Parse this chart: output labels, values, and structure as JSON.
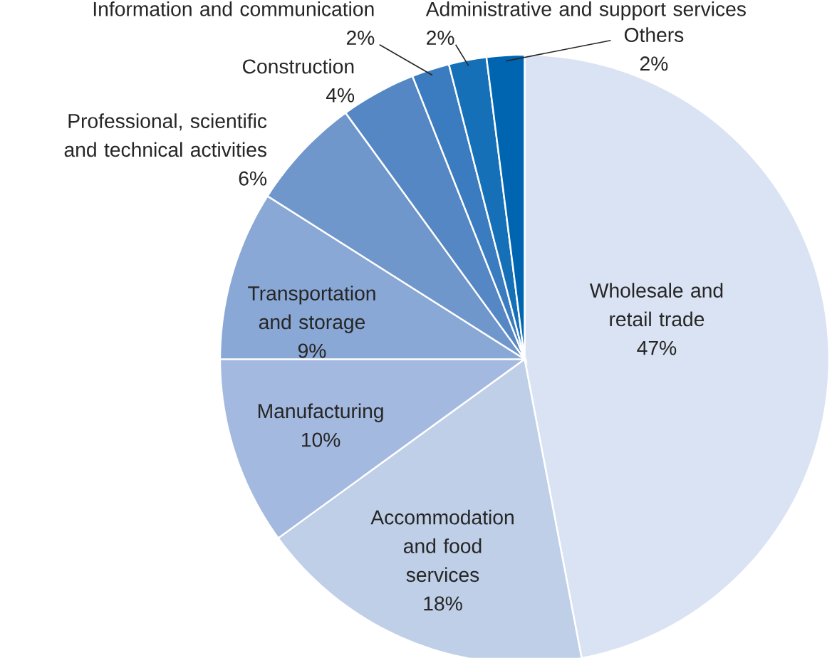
{
  "chart_data": {
    "type": "pie",
    "categories": [
      "Wholesale and retail trade",
      "Accommodation and food services",
      "Manufacturing",
      "Transportation and storage",
      "Professional, scientific and technical activities",
      "Construction",
      "Information and communication",
      "Administrative and support services",
      "Others"
    ],
    "values": [
      47,
      18,
      10,
      9,
      6,
      4,
      2,
      2,
      2
    ],
    "value_labels": [
      "47%",
      "18%",
      "10%",
      "9%",
      "6%",
      "4%",
      "2%",
      "2%",
      "2%"
    ],
    "colors": [
      "#dae3f3",
      "#bfcfe8",
      "#a3b9df",
      "#8aa8d6",
      "#6f97cc",
      "#5587c4",
      "#3b7bc0",
      "#1570b8",
      "#0065b0"
    ]
  }
}
